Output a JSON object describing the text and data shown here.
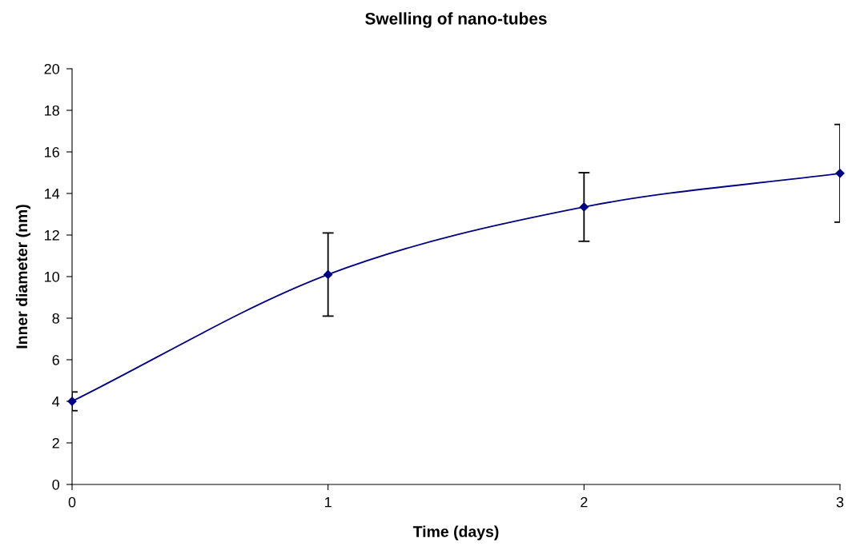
{
  "chart_data": {
    "type": "line",
    "title": "Swelling of nano-tubes",
    "xlabel": "Time (days)",
    "ylabel": "Inner diameter (nm)",
    "x": [
      0,
      1,
      2,
      3
    ],
    "series": [
      {
        "color": "#000080",
        "values": [
          4.0,
          10.1,
          13.35,
          14.97
        ],
        "errors": [
          0.45,
          2.0,
          1.65,
          2.35
        ]
      }
    ],
    "xlim": [
      0,
      3
    ],
    "xticks": [
      0,
      1,
      2,
      3
    ],
    "ylim": [
      0,
      20
    ],
    "yticks": [
      0,
      2,
      4,
      6,
      8,
      10,
      12,
      14,
      16,
      18,
      20
    ],
    "grid": false,
    "legend": false,
    "marker": "diamond",
    "line_style": "solid"
  }
}
